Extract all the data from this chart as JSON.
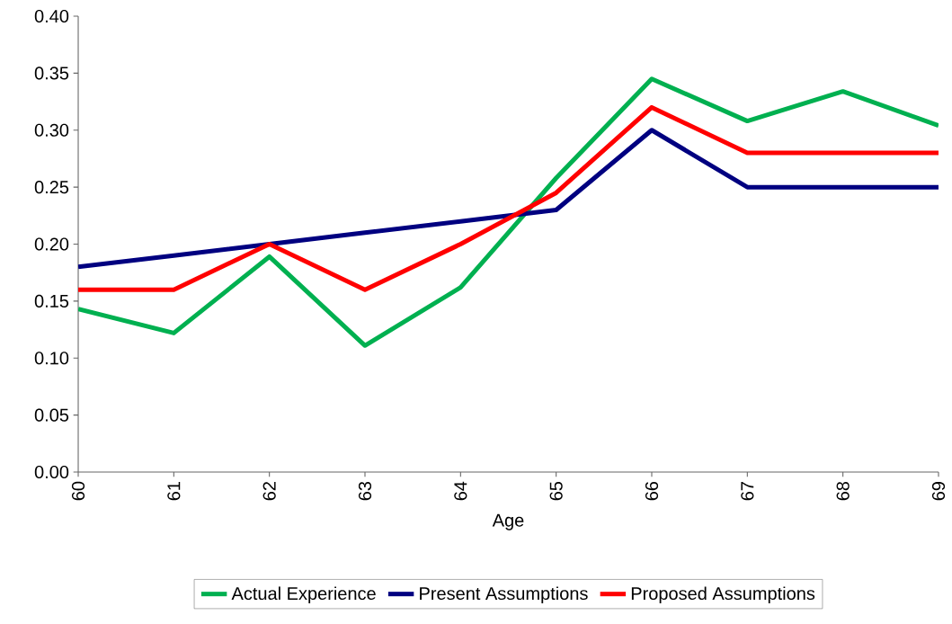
{
  "chart_data": {
    "type": "line",
    "xlabel": "Age",
    "x": [
      60,
      61,
      62,
      63,
      64,
      65,
      66,
      67,
      68,
      69
    ],
    "xlim": [
      60,
      69
    ],
    "xticks": [
      60,
      61,
      62,
      63,
      64,
      65,
      66,
      67,
      68,
      69
    ],
    "ylim": [
      0,
      0.4
    ],
    "yticks": [
      {
        "value": 0,
        "label": "0.00"
      },
      {
        "value": 0.05,
        "label": "0.05"
      },
      {
        "value": 0.1,
        "label": "0.10"
      },
      {
        "value": 0.15,
        "label": "0.15"
      },
      {
        "value": 0.2,
        "label": "0.20"
      },
      {
        "value": 0.25,
        "label": "0.25"
      },
      {
        "value": 0.3,
        "label": "0.30"
      },
      {
        "value": 0.35,
        "label": "0.35"
      },
      {
        "value": 0.4,
        "label": "0.40"
      }
    ],
    "series": [
      {
        "name": "Actual Experience",
        "color": "#00b050",
        "values": [
          0.143,
          0.122,
          0.189,
          0.111,
          0.162,
          0.258,
          0.345,
          0.308,
          0.334,
          0.304
        ]
      },
      {
        "name": "Present Assumptions",
        "color": "#000080",
        "values": [
          0.18,
          0.19,
          0.2,
          0.21,
          0.22,
          0.23,
          0.3,
          0.25,
          0.25,
          0.25
        ]
      },
      {
        "name": "Proposed Assumptions",
        "color": "#ff0000",
        "values": [
          0.16,
          0.16,
          0.2,
          0.16,
          0.2,
          0.245,
          0.32,
          0.28,
          0.28,
          0.28
        ]
      }
    ],
    "legend": "bottom",
    "grid": false,
    "marker": "none",
    "line_style": "solid"
  }
}
